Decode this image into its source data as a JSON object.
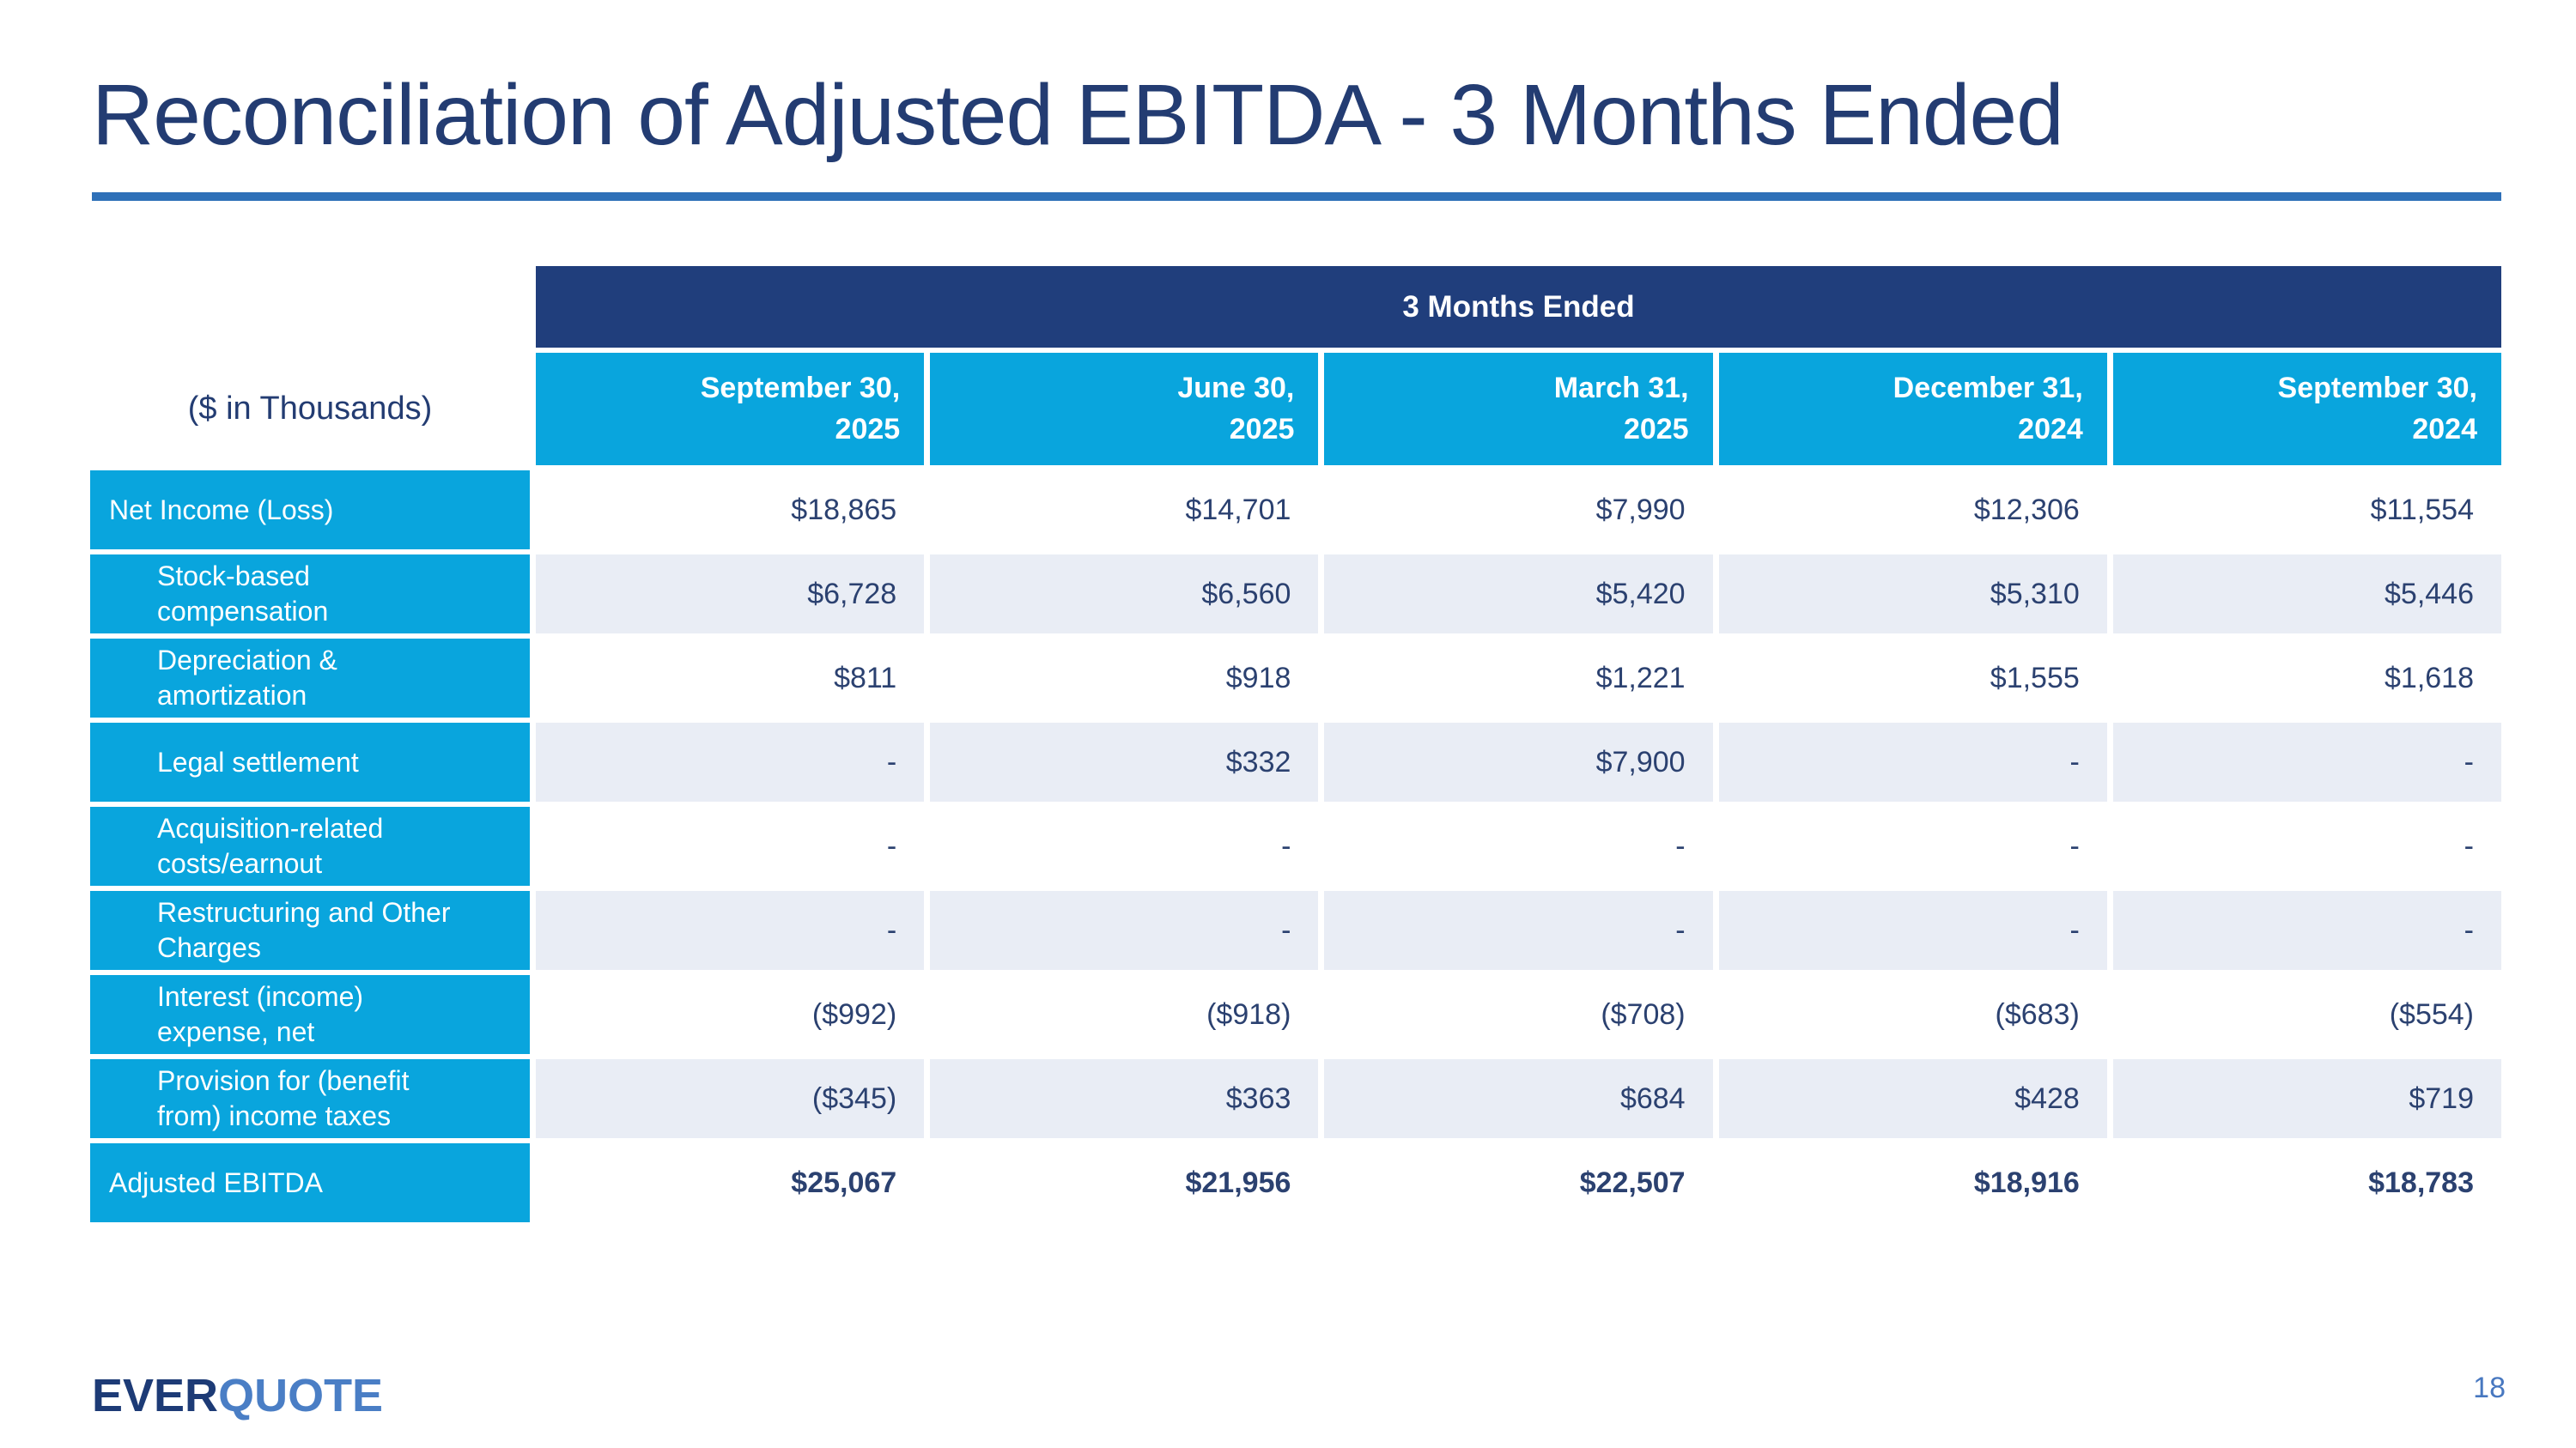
{
  "slide": {
    "title": "Reconciliation of Adjusted EBITDA - 3 Months Ended",
    "page_number": "18",
    "logo_part1": "EVER",
    "logo_part2": "QUOTE"
  },
  "table": {
    "units_label": "($ in Thousands)",
    "span_header": "3 Months Ended",
    "columns": [
      {
        "line1": "September 30,",
        "line2": "2025"
      },
      {
        "line1": "June 30,",
        "line2": "2025"
      },
      {
        "line1": "March 31,",
        "line2": "2025"
      },
      {
        "line1": "December 31,",
        "line2": "2024"
      },
      {
        "line1": "September 30,",
        "line2": "2024"
      }
    ],
    "rows": [
      {
        "label_lines": [
          "Net Income (Loss)"
        ],
        "indent": false,
        "bold": false,
        "values": [
          "$18,865",
          "$14,701",
          "$7,990",
          "$12,306",
          "$11,554"
        ]
      },
      {
        "label_lines": [
          "Stock-based",
          "compensation"
        ],
        "indent": true,
        "bold": false,
        "values": [
          "$6,728",
          "$6,560",
          "$5,420",
          "$5,310",
          "$5,446"
        ]
      },
      {
        "label_lines": [
          "Depreciation &",
          "amortization"
        ],
        "indent": true,
        "bold": false,
        "values": [
          "$811",
          "$918",
          "$1,221",
          "$1,555",
          "$1,618"
        ]
      },
      {
        "label_lines": [
          "Legal settlement"
        ],
        "indent": true,
        "bold": false,
        "values": [
          "-",
          "$332",
          "$7,900",
          "-",
          "-"
        ]
      },
      {
        "label_lines": [
          "Acquisition-related",
          "costs/earnout"
        ],
        "indent": true,
        "bold": false,
        "values": [
          "-",
          "-",
          "-",
          "-",
          "-"
        ]
      },
      {
        "label_lines": [
          "Restructuring and Other",
          "Charges"
        ],
        "indent": true,
        "bold": false,
        "values": [
          "-",
          "-",
          "-",
          "-",
          "-"
        ]
      },
      {
        "label_lines": [
          "Interest (income)",
          "expense, net"
        ],
        "indent": true,
        "bold": false,
        "values": [
          "($992)",
          "($918)",
          "($708)",
          "($683)",
          "($554)"
        ]
      },
      {
        "label_lines": [
          "Provision for (benefit",
          "from) income taxes"
        ],
        "indent": true,
        "bold": false,
        "values": [
          "($345)",
          "$363",
          "$684",
          "$428",
          "$719"
        ]
      },
      {
        "label_lines": [
          "Adjusted EBITDA"
        ],
        "indent": false,
        "bold": true,
        "values": [
          "$25,067",
          "$21,956",
          "$22,507",
          "$18,916",
          "$18,783"
        ]
      }
    ]
  },
  "colors": {
    "header_band": "#203e7c",
    "column_header": "#09a5dd",
    "row_stripe": "#e9edf5",
    "accent_rule": "#2e70b8",
    "text_navy": "#233c72",
    "logo_primary": "#1d3b76",
    "logo_secondary": "#4a7ec5"
  }
}
